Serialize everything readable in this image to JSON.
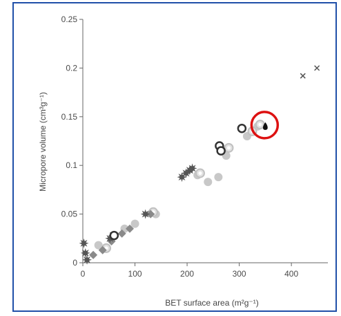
{
  "chart_data": {
    "type": "scatter",
    "xlabel": "BET surface area (m²g⁻¹)",
    "ylabel": "Micropore volume (cm³g⁻¹)",
    "xlim": [
      0,
      470
    ],
    "ylim": [
      0,
      0.25
    ],
    "x_ticks": [
      0,
      100,
      200,
      300,
      400
    ],
    "x_tick_labels": [
      "0",
      "100",
      "200",
      "300",
      "400"
    ],
    "y_ticks": [
      0,
      0.05,
      0.1,
      0.15,
      0.2,
      0.25
    ],
    "y_tick_labels": [
      "0",
      "0.05",
      "0.1",
      "0.15",
      "0.2",
      "0.25"
    ],
    "grid": false,
    "legend": "none",
    "highlight": {
      "x": 350,
      "y": 0.14,
      "color": "#dd1111"
    },
    "series": [
      {
        "marker": "star",
        "color": "#555555",
        "points": [
          [
            2,
            0.02
          ],
          [
            5,
            0.01
          ],
          [
            8,
            0.003
          ],
          [
            52,
            0.025
          ],
          [
            58,
            0.028
          ],
          [
            120,
            0.05
          ],
          [
            190,
            0.088
          ],
          [
            198,
            0.092
          ],
          [
            205,
            0.095
          ],
          [
            210,
            0.097
          ]
        ]
      },
      {
        "marker": "diamond",
        "color": "#8a8a8a",
        "points": [
          [
            20,
            0.008
          ],
          [
            38,
            0.013
          ],
          [
            55,
            0.022
          ],
          [
            75,
            0.03
          ],
          [
            90,
            0.035
          ],
          [
            130,
            0.05
          ]
        ]
      },
      {
        "marker": "circle",
        "color": "#c8c8c8",
        "points": [
          [
            30,
            0.018
          ],
          [
            80,
            0.035
          ],
          [
            100,
            0.04
          ],
          [
            140,
            0.05
          ],
          [
            220,
            0.09
          ],
          [
            240,
            0.083
          ],
          [
            260,
            0.088
          ],
          [
            275,
            0.11
          ],
          [
            315,
            0.13
          ],
          [
            335,
            0.14
          ]
        ]
      },
      {
        "marker": "ring",
        "color": "#c0c0c0",
        "points": [
          [
            45,
            0.015
          ],
          [
            135,
            0.052
          ],
          [
            225,
            0.092
          ],
          [
            280,
            0.118
          ],
          [
            325,
            0.135
          ],
          [
            340,
            0.142
          ]
        ]
      },
      {
        "marker": "donut",
        "color": "#333333",
        "points": [
          [
            60,
            0.028
          ],
          [
            262,
            0.12
          ],
          [
            265,
            0.115
          ],
          [
            305,
            0.138
          ]
        ]
      },
      {
        "marker": "drop",
        "color": "#111111",
        "points": [
          [
            350,
            0.14
          ]
        ]
      },
      {
        "marker": "cross",
        "color": "#555555",
        "points": [
          [
            422,
            0.192
          ],
          [
            449,
            0.2
          ]
        ]
      }
    ]
  }
}
